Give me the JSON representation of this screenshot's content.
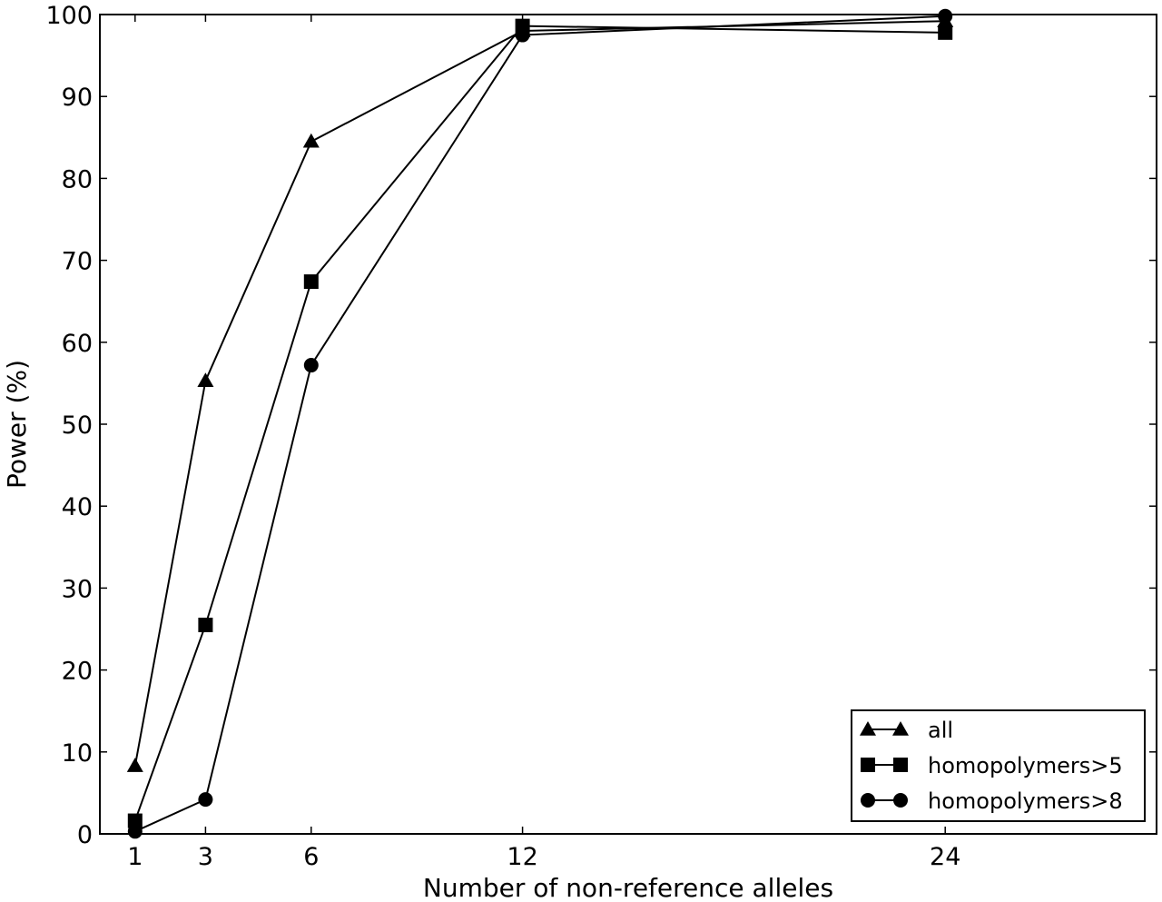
{
  "chart_data": {
    "type": "line",
    "title": "",
    "xlabel": "Number of non-reference alleles",
    "ylabel": "Power (%)",
    "xlim": [
      0,
      30
    ],
    "ylim": [
      0,
      100
    ],
    "x": [
      1,
      3,
      6,
      12,
      24
    ],
    "xticks": [
      1,
      3,
      6,
      12,
      24
    ],
    "yticks": [
      0,
      10,
      20,
      30,
      40,
      50,
      60,
      70,
      80,
      90,
      100
    ],
    "grid": false,
    "legend_position": "lower-right",
    "series": [
      {
        "name": "all",
        "marker": "triangle",
        "values": [
          8.3,
          55.3,
          84.5,
          98.0,
          99.2
        ]
      },
      {
        "name": "homopolymers>5",
        "marker": "square",
        "values": [
          1.6,
          25.5,
          67.4,
          98.6,
          97.8
        ]
      },
      {
        "name": "homopolymers>8",
        "marker": "circle",
        "values": [
          0.3,
          4.2,
          57.2,
          97.5,
          99.8
        ]
      }
    ],
    "line_color": "#000000"
  }
}
